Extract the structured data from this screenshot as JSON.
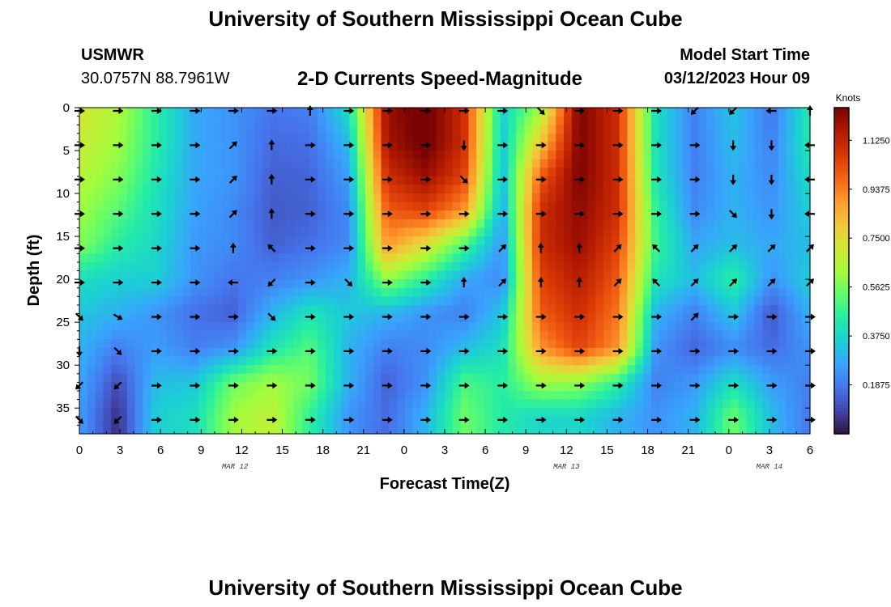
{
  "page": {
    "title": "University of Southern Mississippi Ocean Cube",
    "station": "USMWR",
    "coordinates": "30.0757N  88.7961W",
    "plot_title": "2-D Currents Speed-Magnitude",
    "model_start_label": "Model Start Time",
    "model_start_value": "03/12/2023 Hour 09",
    "footer_title": "University of Southern Mississippi Ocean Cube"
  },
  "chart_data": {
    "type": "heatmap",
    "title": "2-D Currents Speed-Magnitude",
    "xlabel": "Forecast Time(Z)",
    "ylabel": "Depth (ft)",
    "x_ticks": [
      "0",
      "3",
      "6",
      "9",
      "12",
      "15",
      "18",
      "21",
      "0",
      "3",
      "6",
      "9",
      "12",
      "15",
      "18",
      "21",
      "0",
      "3",
      "6"
    ],
    "x_range_hours": [
      0,
      54
    ],
    "y_ticks": [
      "0",
      "5",
      "10",
      "15",
      "20",
      "25",
      "30",
      "35"
    ],
    "y_range_ft": [
      0,
      38
    ],
    "date_labels": [
      {
        "text": "MAR 12",
        "hour": 11.5
      },
      {
        "text": "MAR 13",
        "hour": 36
      },
      {
        "text": "MAR 14",
        "hour": 51
      }
    ],
    "colorbar": {
      "label": "Knots",
      "ticks": [
        "1.1250",
        "0.9375",
        "0.7500",
        "0.5625",
        "0.3750",
        "0.1875"
      ],
      "tick_values": [
        1.125,
        0.9375,
        0.75,
        0.5625,
        0.375,
        0.1875
      ],
      "range": [
        0,
        1.25
      ],
      "colors": [
        "#30123b",
        "#4145ab",
        "#4675ed",
        "#39a2fc",
        "#1bcfd4",
        "#24eca6",
        "#61fc6c",
        "#a4fc3b",
        "#d1e834",
        "#f3c63a",
        "#fe9b2d",
        "#f36315",
        "#d93806",
        "#b11901",
        "#7a0403"
      ]
    },
    "speed_anchor_ft": [
      0,
      4,
      8,
      12,
      16,
      20,
      24,
      28,
      32,
      36
    ],
    "speed_knots": [
      [
        0.72,
        0.7,
        0.66,
        0.62,
        0.58,
        0.4,
        0.34,
        0.3,
        0.28,
        0.26
      ],
      [
        0.65,
        0.62,
        0.58,
        0.52,
        0.45,
        0.36,
        0.3,
        0.2,
        0.1,
        0.05
      ],
      [
        0.45,
        0.45,
        0.42,
        0.4,
        0.38,
        0.36,
        0.24,
        0.26,
        0.32,
        0.36
      ],
      [
        0.28,
        0.28,
        0.28,
        0.27,
        0.25,
        0.24,
        0.17,
        0.2,
        0.34,
        0.4
      ],
      [
        0.24,
        0.24,
        0.24,
        0.22,
        0.22,
        0.18,
        0.14,
        0.24,
        0.55,
        0.62
      ],
      [
        0.18,
        0.16,
        0.14,
        0.13,
        0.14,
        0.2,
        0.3,
        0.42,
        0.62,
        0.68
      ],
      [
        0.2,
        0.17,
        0.15,
        0.14,
        0.17,
        0.24,
        0.42,
        0.52,
        0.56,
        0.46
      ],
      [
        0.4,
        0.32,
        0.26,
        0.22,
        0.22,
        0.3,
        0.34,
        0.3,
        0.3,
        0.24
      ],
      [
        1.2,
        1.18,
        1.1,
        1.0,
        0.9,
        0.6,
        0.3,
        0.2,
        0.14,
        0.16
      ],
      [
        1.28,
        1.28,
        1.2,
        1.05,
        0.74,
        0.45,
        0.24,
        0.22,
        0.24,
        0.3
      ],
      [
        1.1,
        1.1,
        1.05,
        0.9,
        0.5,
        0.28,
        0.2,
        0.32,
        0.5,
        0.55
      ],
      [
        0.36,
        0.34,
        0.32,
        0.28,
        0.24,
        0.22,
        0.34,
        0.4,
        0.45,
        0.44
      ],
      [
        0.62,
        0.8,
        1.0,
        1.1,
        1.1,
        1.05,
        1.0,
        0.9,
        0.62,
        0.38
      ],
      [
        1.25,
        1.25,
        1.25,
        1.22,
        1.2,
        1.15,
        1.1,
        1.05,
        0.6,
        0.38
      ],
      [
        1.1,
        1.1,
        1.1,
        1.1,
        1.05,
        1.0,
        0.95,
        0.9,
        0.46,
        0.3
      ],
      [
        0.4,
        0.4,
        0.42,
        0.46,
        0.48,
        0.42,
        0.3,
        0.24,
        0.2,
        0.24
      ],
      [
        0.2,
        0.2,
        0.2,
        0.22,
        0.28,
        0.32,
        0.2,
        0.15,
        0.25,
        0.3
      ],
      [
        0.34,
        0.32,
        0.3,
        0.3,
        0.32,
        0.46,
        0.34,
        0.22,
        0.4,
        0.55
      ],
      [
        0.18,
        0.2,
        0.22,
        0.24,
        0.28,
        0.24,
        0.12,
        0.16,
        0.26,
        0.32
      ],
      [
        0.44,
        0.44,
        0.4,
        0.36,
        0.32,
        0.36,
        0.3,
        0.24,
        0.2,
        0.18
      ]
    ],
    "arrow_rows_ft": [
      0,
      4,
      8,
      12,
      16,
      20,
      24,
      28,
      32,
      36
    ],
    "arrow_dirs_deg": [
      [
        0,
        0,
        0,
        0,
        0,
        0,
        270,
        0,
        0,
        0,
        0,
        0,
        45,
        0,
        0,
        0,
        135,
        135,
        180,
        270
      ],
      [
        0,
        0,
        0,
        0,
        315,
        270,
        0,
        0,
        0,
        0,
        90,
        0,
        0,
        0,
        0,
        0,
        0,
        90,
        90,
        180
      ],
      [
        0,
        0,
        0,
        0,
        315,
        270,
        0,
        0,
        0,
        0,
        45,
        0,
        0,
        0,
        0,
        0,
        0,
        90,
        90,
        180
      ],
      [
        0,
        0,
        0,
        0,
        315,
        270,
        0,
        0,
        0,
        0,
        0,
        0,
        0,
        0,
        0,
        0,
        0,
        45,
        90,
        180
      ],
      [
        0,
        0,
        0,
        0,
        270,
        225,
        0,
        0,
        0,
        0,
        0,
        315,
        270,
        270,
        315,
        225,
        315,
        315,
        315,
        315
      ],
      [
        0,
        0,
        0,
        0,
        180,
        135,
        0,
        45,
        0,
        0,
        270,
        315,
        270,
        270,
        315,
        225,
        315,
        315,
        315,
        315
      ],
      [
        45,
        30,
        0,
        0,
        0,
        45,
        0,
        0,
        0,
        0,
        0,
        0,
        0,
        0,
        0,
        0,
        315,
        0,
        0,
        0
      ],
      [
        90,
        45,
        0,
        0,
        0,
        0,
        0,
        0,
        0,
        0,
        0,
        0,
        0,
        0,
        0,
        0,
        0,
        0,
        0,
        0
      ],
      [
        135,
        135,
        0,
        0,
        0,
        0,
        0,
        0,
        0,
        0,
        0,
        0,
        0,
        0,
        0,
        0,
        0,
        0,
        0,
        0
      ],
      [
        45,
        135,
        0,
        0,
        0,
        0,
        0,
        0,
        0,
        0,
        0,
        0,
        0,
        0,
        0,
        0,
        0,
        0,
        0,
        0
      ]
    ]
  }
}
